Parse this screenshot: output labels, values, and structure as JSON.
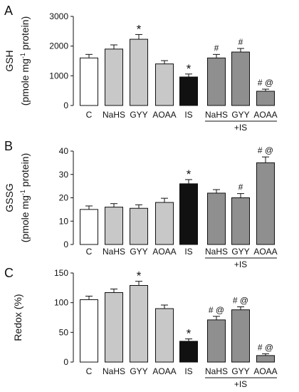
{
  "chart_data": [
    {
      "type": "bar",
      "panel_label": "A",
      "ylabel_line1": "GSH",
      "ylabel_line2_prefix": "(pmole mg",
      "ylabel_sup": "-1",
      "ylabel_line2_suffix": " protein)",
      "categories": [
        "C",
        "NaHS",
        "GYY",
        "AOAA",
        "IS",
        "NaHS",
        "GYY",
        "AOAA"
      ],
      "group_label": "+IS",
      "ylim": [
        0,
        3000
      ],
      "yticks": [
        0,
        1000,
        2000,
        3000
      ],
      "values": [
        1600,
        1900,
        2230,
        1400,
        960,
        1600,
        1800,
        480
      ],
      "errors": [
        120,
        140,
        160,
        110,
        100,
        120,
        120,
        70
      ],
      "fill_colors": [
        "#ffffff",
        "#c8c8c8",
        "#c8c8c8",
        "#c8c8c8",
        "#111111",
        "#8f8f8f",
        "#8f8f8f",
        "#8f8f8f"
      ],
      "annotations": [
        "",
        "",
        "*",
        "",
        "*",
        "#",
        "#",
        "# @"
      ]
    },
    {
      "type": "bar",
      "panel_label": "B",
      "ylabel_line1": "GSSG",
      "ylabel_line2_prefix": "(pmole mg",
      "ylabel_sup": "-1",
      "ylabel_line2_suffix": " protein)",
      "categories": [
        "C",
        "NaHS",
        "GYY",
        "AOAA",
        "IS",
        "NaHS",
        "GYY",
        "AOAA"
      ],
      "group_label": "+IS",
      "ylim": [
        0,
        40
      ],
      "yticks": [
        0,
        10,
        20,
        30,
        40
      ],
      "values": [
        15,
        16,
        15.5,
        18,
        26,
        22,
        20,
        35
      ],
      "errors": [
        1.5,
        1.5,
        1.5,
        1.8,
        1.8,
        1.5,
        1.8,
        2.5
      ],
      "fill_colors": [
        "#ffffff",
        "#c8c8c8",
        "#c8c8c8",
        "#c8c8c8",
        "#111111",
        "#8f8f8f",
        "#8f8f8f",
        "#8f8f8f"
      ],
      "annotations": [
        "",
        "",
        "",
        "",
        "*",
        "",
        "#",
        "# @"
      ]
    },
    {
      "type": "bar",
      "panel_label": "C",
      "ylabel_line1": "Redox (%)",
      "categories": [
        "C",
        "NaHS",
        "GYY",
        "AOAA",
        "IS",
        "NaHS",
        "GYY",
        "AOAA"
      ],
      "group_label": "+IS",
      "ylim": [
        0,
        150
      ],
      "yticks": [
        0,
        50,
        100,
        150
      ],
      "values": [
        105,
        117,
        129,
        90,
        35,
        71,
        88,
        11
      ],
      "errors": [
        6,
        6,
        7,
        6,
        4,
        6,
        5,
        3
      ],
      "fill_colors": [
        "#ffffff",
        "#c8c8c8",
        "#c8c8c8",
        "#c8c8c8",
        "#111111",
        "#8f8f8f",
        "#8f8f8f",
        "#8f8f8f"
      ],
      "annotations": [
        "",
        "",
        "*",
        "",
        "*",
        "# @",
        "# @",
        "# @"
      ]
    }
  ]
}
